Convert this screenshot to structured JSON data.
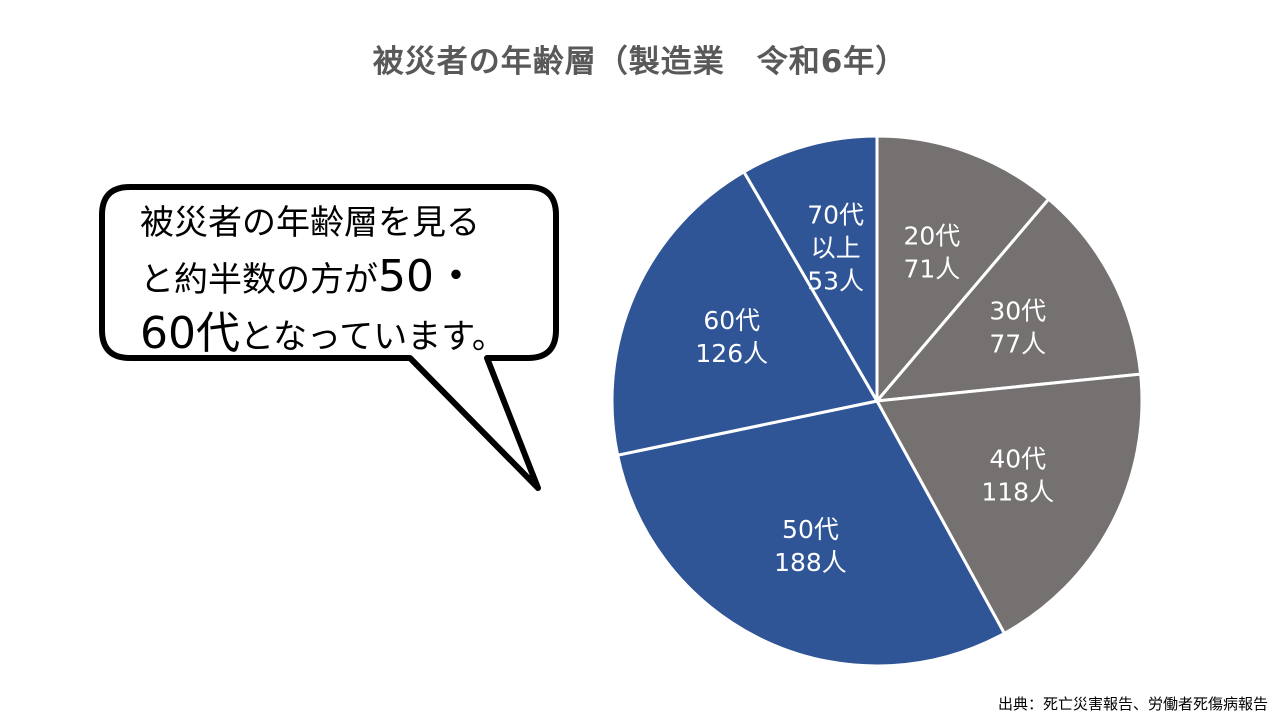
{
  "title": "被災者の年齢層（製造業　令和6年）",
  "bubble": {
    "line1": "被災者の年齢層を見る",
    "line2_pre": "と約半数の方が",
    "line2_big": "50・",
    "line3_big": "60代",
    "line3_post": "となっています。"
  },
  "source": "出典：死亡災害報告、労働者死傷病報告",
  "colors": {
    "gray": "#767171",
    "blue": "#2F5597",
    "border": "#ffffff"
  },
  "chart_data": {
    "type": "pie",
    "title": "被災者の年齢層（製造業　令和6年）",
    "start": "12 o'clock, clockwise",
    "slices": [
      {
        "label": "20代",
        "value": 71,
        "value_text": "71人",
        "color": "#767171"
      },
      {
        "label": "30代",
        "value": 77,
        "value_text": "77人",
        "color": "#767171"
      },
      {
        "label": "40代",
        "value": 118,
        "value_text": "118人",
        "color": "#767171"
      },
      {
        "label": "50代",
        "value": 188,
        "value_text": "188人",
        "color": "#2F5597"
      },
      {
        "label": "60代",
        "value": 126,
        "value_text": "126人",
        "color": "#2F5597"
      },
      {
        "label": "70代以上",
        "label_lines": [
          "70代",
          "以上"
        ],
        "value": 53,
        "value_text": "53人",
        "color": "#2F5597"
      }
    ]
  }
}
